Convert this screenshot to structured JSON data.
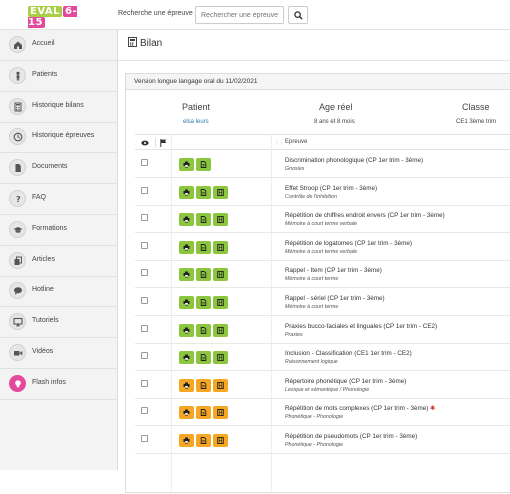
{
  "header": {
    "logo_part1": "EVAL",
    "logo_part2": "6-15",
    "search_label": "Recherche une épreuve :",
    "search_placeholder": "Rechercher une épreuve",
    "search_icon": "search-icon"
  },
  "sidebar": {
    "items": [
      {
        "label": "Accueil",
        "icon": "home-icon"
      },
      {
        "label": "Patients",
        "icon": "person-icon"
      },
      {
        "label": "Historique bilans",
        "icon": "calculator-icon"
      },
      {
        "label": "Historique épreuves",
        "icon": "clock-icon"
      },
      {
        "label": "Documents",
        "icon": "document-icon"
      },
      {
        "label": "FAQ",
        "icon": "question-icon"
      },
      {
        "label": "Formations",
        "icon": "graduation-cap-icon"
      },
      {
        "label": "Articles",
        "icon": "copy-icon"
      },
      {
        "label": "Hotline",
        "icon": "chat-icon"
      },
      {
        "label": "Tutoriels",
        "icon": "monitor-icon"
      },
      {
        "label": "Vidéos",
        "icon": "video-camera-icon"
      },
      {
        "label": "Flash infos",
        "icon": "lightbulb-icon"
      }
    ]
  },
  "page": {
    "title": "Bilan",
    "panel_title": "Version longue langage oral du 11/02/2021",
    "patient_heading": "Patient",
    "patient_name": "elsa leurs",
    "age_heading": "Age réel",
    "age_value": "8  ans et 8 mois",
    "classe_heading": "Classe",
    "classe_value": "CE1 3ème trim",
    "col_epreuve": "Epreuve"
  },
  "colors": {
    "accent_green": "#8cc63f",
    "accent_orange": "#f5a623",
    "flash_pink": "#e5499d",
    "link_blue": "#2a7ab0"
  },
  "rows": [
    {
      "title": "Discrimination phonologique (CP 1er trim - 3ème)",
      "sub": "Gnosies",
      "buttons": [
        "print",
        "file"
      ],
      "color": "green"
    },
    {
      "title": "Effet Stroop (CP 1er trim - 3ème)",
      "sub": "Contrôle de l'inhibition",
      "buttons": [
        "print",
        "file",
        "film"
      ],
      "color": "green"
    },
    {
      "title": "Répétition de chiffres endroit envers (CP 1er trim - 3ème)",
      "sub": "Mémoire à court terme verbale",
      "buttons": [
        "print",
        "file",
        "film"
      ],
      "color": "green"
    },
    {
      "title": "Répétition de logatomes (CP 1er trim - 3ème)",
      "sub": "Mémoire à court terme verbale",
      "buttons": [
        "print",
        "file",
        "film"
      ],
      "color": "green"
    },
    {
      "title": "Rappel - Item (CP 1er trim - 3ème)",
      "sub": "Mémoire à court terme",
      "buttons": [
        "print",
        "file",
        "film"
      ],
      "color": "green"
    },
    {
      "title": "Rappel - sériel (CP 1er trim - 3ème)",
      "sub": "Mémoire à court terme",
      "buttons": [
        "print",
        "file",
        "film"
      ],
      "color": "green"
    },
    {
      "title": "Praxies bucco-faciales et linguales (CP 1er trim - CE2)",
      "sub": "Praxies",
      "buttons": [
        "print",
        "file",
        "film"
      ],
      "color": "green"
    },
    {
      "title": "Inclusion - Classification (CE1 1er trim - CE2)",
      "sub": "Raisonnement logique",
      "buttons": [
        "print",
        "file",
        "film"
      ],
      "color": "green"
    },
    {
      "title": "Répertoire phonétique (CP 1er trim - 3ème)",
      "sub": "Lexique et sémantique / Phonologie",
      "buttons": [
        "print",
        "file",
        "film"
      ],
      "color": "orange"
    },
    {
      "title": "Répétition de mots complexes (CP 1er trim - 3ème)",
      "sub": "Phonétique - Phonologie",
      "buttons": [
        "print",
        "file",
        "film"
      ],
      "color": "orange",
      "star": "✱"
    },
    {
      "title": "Répétition de pseudomots (CP 1er trim - 3ème)",
      "sub": "Phonétique - Phonologie",
      "buttons": [
        "print",
        "file",
        "film"
      ],
      "color": "orange"
    }
  ]
}
